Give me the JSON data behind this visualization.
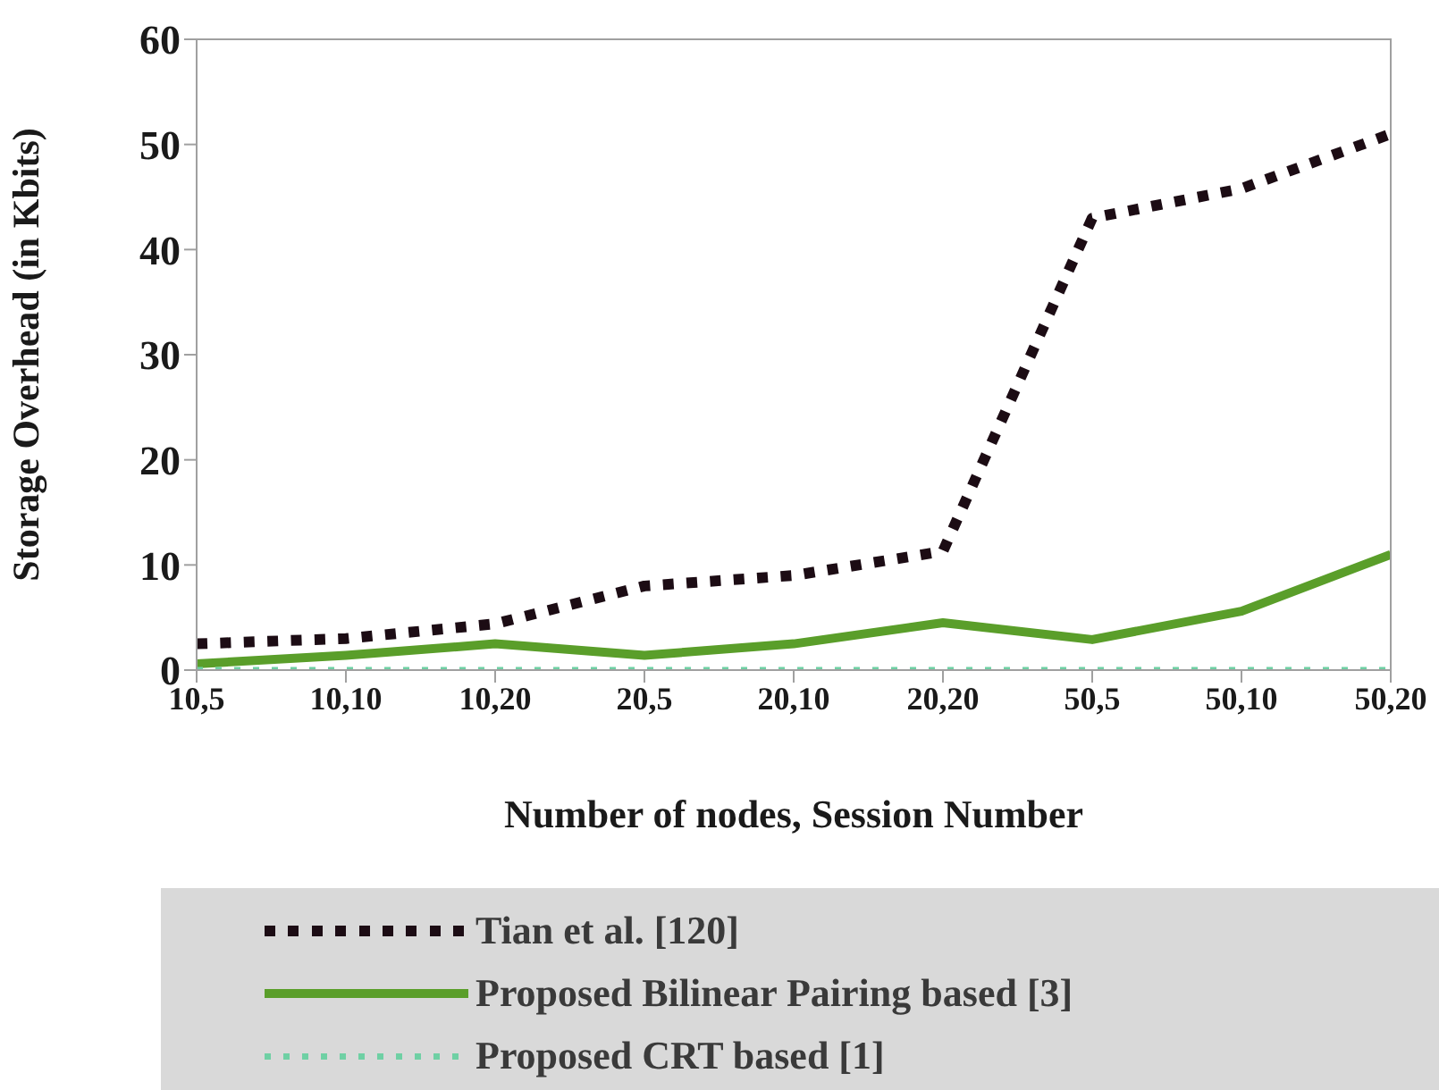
{
  "chart_data": {
    "type": "line",
    "xlabel": "Number of nodes, Session Number",
    "ylabel": "Storage Overhead (in Kbits)",
    "categories": [
      "10,5",
      "10,10",
      "10,20",
      "20,5",
      "20,10",
      "20,20",
      "50,5",
      "50,10",
      "50,20"
    ],
    "ylim": [
      0,
      60
    ],
    "yticks": [
      0,
      10,
      20,
      30,
      40,
      50,
      60
    ],
    "legend": "bottom",
    "series": [
      {
        "name": "Tian et al. [120]",
        "color": "#1c0c14",
        "line_style": "dotted",
        "values": [
          2.5,
          3,
          4.4,
          8,
          9,
          11.3,
          43,
          45.8,
          51
        ]
      },
      {
        "name": "Proposed Bilinear Pairing based [3]",
        "color": "#5a9e2a",
        "line_style": "solid",
        "values": [
          0.6,
          1.4,
          2.5,
          1.4,
          2.5,
          4.5,
          2.9,
          5.6,
          11
        ]
      },
      {
        "name": "Proposed CRT based [1]",
        "color": "#6fd0a4",
        "line_style": "dotted",
        "values": [
          0,
          0,
          0,
          0,
          0,
          0,
          0,
          0,
          0
        ]
      }
    ]
  }
}
